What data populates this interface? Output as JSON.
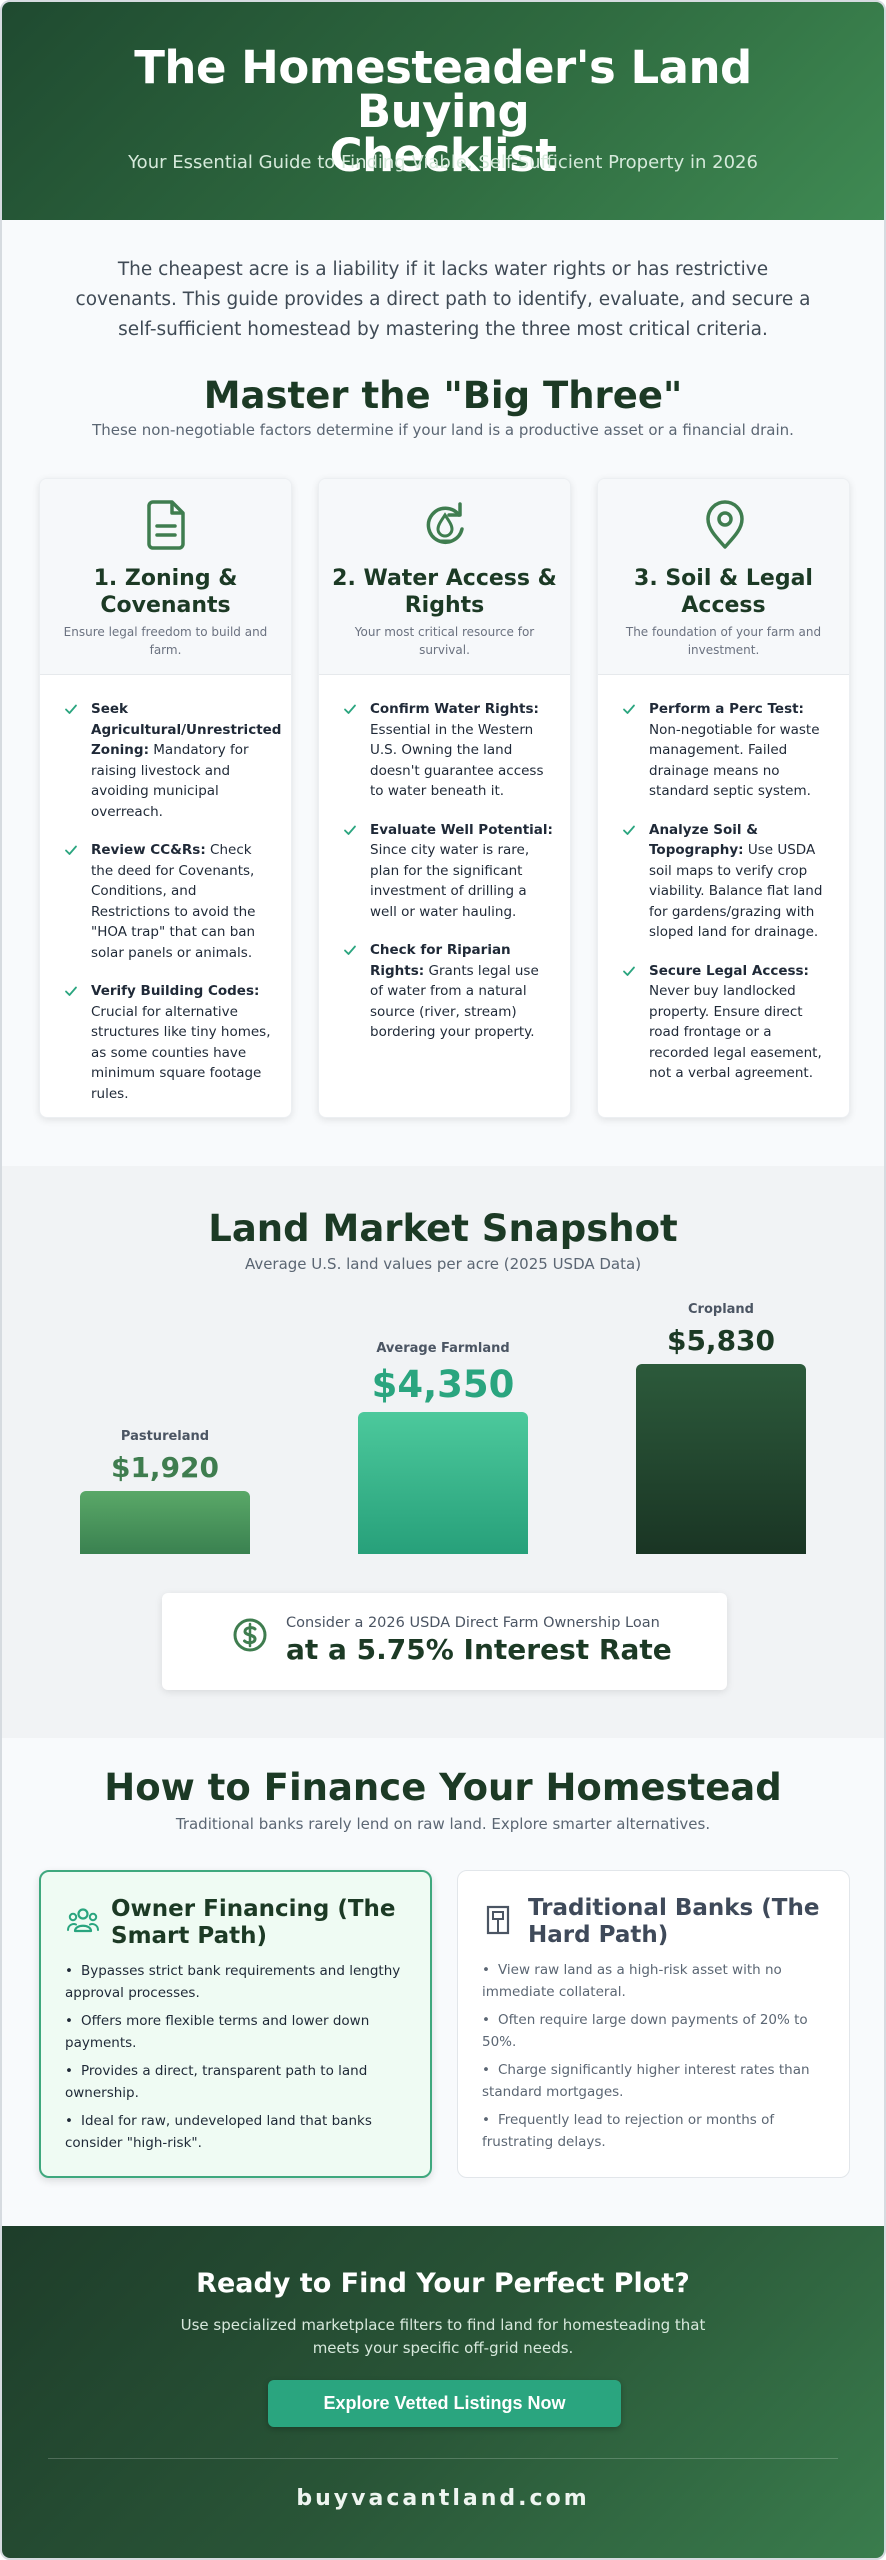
{
  "header": {
    "title_line1": "The Homesteader's Land Buying",
    "title_line2": "Checklist",
    "subtitle": "Your Essential Guide to Finding Viable, Self-Sufficient Property in 2026"
  },
  "intro": "The cheapest acre is a liability if it lacks water rights or has restrictive covenants. This guide provides a direct path to identify, evaluate, and secure a self-sufficient homestead by mastering the three most critical criteria.",
  "big_three": {
    "title": "Master the \"Big Three\"",
    "subtitle": "These non-negotiable factors determine if your land is a productive asset or a financial drain.",
    "cards": [
      {
        "icon": "document-icon",
        "title": "1. Zoning & Covenants",
        "tagline": "Ensure legal freedom to build and farm.",
        "items": [
          {
            "bold": "Seek Agricultural/Unrestricted Zoning:",
            "text": " Mandatory for raising livestock and avoiding municipal overreach."
          },
          {
            "bold": "Review CC&Rs:",
            "text": " Check the deed for Covenants, Conditions, and Restrictions to avoid the \"HOA trap\" that can ban solar panels or animals."
          },
          {
            "bold": "Verify Building Codes:",
            "text": " Crucial for alternative structures like tiny homes, as some counties have minimum square footage rules."
          }
        ]
      },
      {
        "icon": "water-refresh-icon",
        "title": "2. Water Access & Rights",
        "tagline": "Your most critical resource for survival.",
        "items": [
          {
            "bold": "Confirm Water Rights:",
            "text": " Essential in the Western U.S. Owning the land doesn't guarantee access to water beneath it."
          },
          {
            "bold": "Evaluate Well Potential:",
            "text": " Since city water is rare, plan for the significant investment of drilling a well or water hauling."
          },
          {
            "bold": "Check for Riparian Rights:",
            "text": " Grants legal use of water from a natural source (river, stream) bordering your property."
          }
        ]
      },
      {
        "icon": "map-pin-icon",
        "title": "3. Soil & Legal Access",
        "tagline": "The foundation of your farm and investment.",
        "items": [
          {
            "bold": "Perform a Perc Test:",
            "text": " Non-negotiable for waste management. Failed drainage means no standard septic system."
          },
          {
            "bold": "Analyze Soil & Topography:",
            "text": " Use USDA soil maps to verify crop viability. Balance flat land for gardens/grazing with sloped land for drainage."
          },
          {
            "bold": "Secure Legal Access:",
            "text": " Never buy landlocked property. Ensure direct road frontage or a recorded legal easement, not a verbal agreement."
          }
        ]
      }
    ]
  },
  "market": {
    "title": "Land Market Snapshot",
    "subtitle": "Average U.S. land values per acre (2025 USDA Data)",
    "loan_line1": "Consider a 2026 USDA Direct Farm Ownership Loan",
    "loan_line2": "at a 5.75% Interest Rate"
  },
  "chart_data": {
    "type": "bar",
    "title": "Land Market Snapshot",
    "subtitle": "Average U.S. land values per acre (2025 USDA Data)",
    "categories": [
      "Pastureland",
      "Average Farmland",
      "Cropland"
    ],
    "values": [
      1920,
      4350,
      5830
    ],
    "value_labels": [
      "$1,920",
      "$4,350",
      "$5,830"
    ],
    "colors": [
      "#3f8a53",
      "#2aa57f",
      "#1e3d2a"
    ],
    "grid": false,
    "legend": "none"
  },
  "finance": {
    "title": "How to Finance Your Homestead",
    "subtitle": "Traditional banks rarely lend on raw land. Explore smarter alternatives.",
    "owner": {
      "title": "Owner Financing (The Smart Path)",
      "items": [
        "Bypasses strict bank requirements and lengthy approval processes.",
        "Offers more flexible terms and lower down payments.",
        "Provides a direct, transparent path to land ownership.",
        "Ideal for raw, undeveloped land that banks consider \"high-risk\"."
      ]
    },
    "banks": {
      "title": "Traditional Banks (The Hard Path)",
      "items": [
        "View raw land as a high-risk asset with no immediate collateral.",
        "Often require large down payments of 20% to 50%.",
        "Charge significantly higher interest rates than standard mortgages.",
        "Frequently lead to rejection or months of frustrating delays."
      ]
    }
  },
  "footer": {
    "title": "Ready to Find Your Perfect Plot?",
    "text": "Use specialized marketplace filters to find land for homesteading that meets your specific off-grid needs.",
    "button": "Explore Vetted Listings Now",
    "brand": "buyvacantland.com"
  }
}
